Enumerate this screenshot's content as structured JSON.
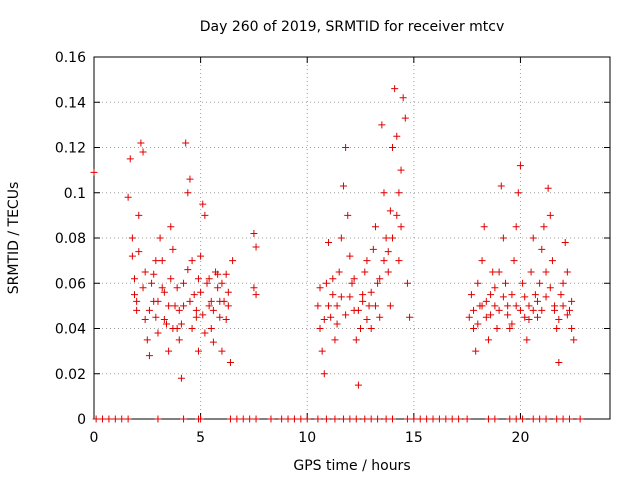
{
  "chart_data": {
    "type": "scatter",
    "title": "Day 260 of 2019, SRMTID for receiver mtcv",
    "xlabel": "GPS time / hours",
    "ylabel": "SRMTID / TECUs",
    "xlim": [
      0,
      24.2
    ],
    "ylim": [
      0,
      0.16
    ],
    "xticks": [
      0,
      5,
      10,
      15,
      20
    ],
    "xtick_labels": [
      "0",
      "5",
      "10",
      "15",
      "20"
    ],
    "yticks": [
      0,
      0.02,
      0.04,
      0.06,
      0.08,
      0.1,
      0.12,
      0.14,
      0.16
    ],
    "ytick_labels": [
      "0",
      "0.02",
      "0.04",
      "0.06",
      "0.08",
      "0.1",
      "0.12",
      "0.14",
      "0.16"
    ],
    "grid": true,
    "marker": "+",
    "series": [
      {
        "name": "SRMTID",
        "color": "#e00000",
        "points": [
          [
            0.0,
            0.109
          ],
          [
            1.6,
            0.098
          ],
          [
            1.7,
            0.115
          ],
          [
            1.8,
            0.072
          ],
          [
            1.9,
            0.055
          ],
          [
            2.0,
            0.048
          ],
          [
            2.1,
            0.09
          ],
          [
            2.2,
            0.122
          ],
          [
            2.3,
            0.118
          ],
          [
            2.4,
            0.065
          ],
          [
            2.5,
            0.035
          ],
          [
            2.6,
            0.028
          ],
          [
            2.7,
            0.06
          ],
          [
            2.8,
            0.052
          ],
          [
            2.9,
            0.045
          ],
          [
            3.0,
            0.038
          ],
          [
            3.1,
            0.08
          ],
          [
            3.2,
            0.07
          ],
          [
            3.3,
            0.056
          ],
          [
            3.4,
            0.042
          ],
          [
            3.5,
            0.03
          ],
          [
            3.6,
            0.085
          ],
          [
            3.7,
            0.075
          ],
          [
            3.8,
            0.05
          ],
          [
            3.9,
            0.04
          ],
          [
            4.0,
            0.035
          ],
          [
            4.1,
            0.018
          ],
          [
            4.2,
            0.06
          ],
          [
            4.3,
            0.122
          ],
          [
            4.4,
            0.1
          ],
          [
            4.5,
            0.106
          ],
          [
            4.6,
            0.07
          ],
          [
            4.7,
            0.055
          ],
          [
            4.8,
            0.045
          ],
          [
            4.9,
            0.03
          ],
          [
            5.0,
            0.072
          ],
          [
            5.1,
            0.095
          ],
          [
            5.2,
            0.09
          ],
          [
            5.3,
            0.06
          ],
          [
            5.4,
            0.05
          ],
          [
            5.5,
            0.04
          ],
          [
            5.6,
            0.034
          ],
          [
            5.7,
            0.065
          ],
          [
            5.8,
            0.058
          ],
          [
            5.9,
            0.045
          ],
          [
            6.0,
            0.03
          ],
          [
            6.1,
            0.052
          ],
          [
            6.2,
            0.064
          ],
          [
            6.3,
            0.056
          ],
          [
            6.4,
            0.025
          ],
          [
            6.5,
            0.07
          ],
          [
            7.5,
            0.082
          ],
          [
            7.5,
            0.058
          ],
          [
            7.6,
            0.076
          ],
          [
            7.6,
            0.055
          ],
          [
            1.8,
            0.08
          ],
          [
            1.9,
            0.062
          ],
          [
            2.0,
            0.052
          ],
          [
            2.1,
            0.074
          ],
          [
            2.3,
            0.058
          ],
          [
            2.4,
            0.044
          ],
          [
            2.6,
            0.048
          ],
          [
            2.8,
            0.064
          ],
          [
            2.9,
            0.07
          ],
          [
            3.0,
            0.052
          ],
          [
            3.2,
            0.058
          ],
          [
            3.3,
            0.044
          ],
          [
            3.5,
            0.05
          ],
          [
            3.6,
            0.062
          ],
          [
            3.7,
            0.04
          ],
          [
            3.9,
            0.058
          ],
          [
            4.0,
            0.048
          ],
          [
            4.1,
            0.042
          ],
          [
            4.2,
            0.05
          ],
          [
            4.4,
            0.066
          ],
          [
            4.5,
            0.052
          ],
          [
            4.6,
            0.04
          ],
          [
            4.8,
            0.048
          ],
          [
            4.9,
            0.062
          ],
          [
            5.0,
            0.056
          ],
          [
            5.1,
            0.046
          ],
          [
            5.2,
            0.038
          ],
          [
            5.4,
            0.062
          ],
          [
            5.5,
            0.052
          ],
          [
            5.6,
            0.048
          ],
          [
            5.8,
            0.064
          ],
          [
            5.9,
            0.052
          ],
          [
            6.0,
            0.06
          ],
          [
            6.2,
            0.044
          ],
          [
            6.3,
            0.05
          ],
          [
            10.5,
            0.05
          ],
          [
            10.6,
            0.04
          ],
          [
            10.7,
            0.03
          ],
          [
            10.8,
            0.02
          ],
          [
            10.9,
            0.06
          ],
          [
            11.0,
            0.078
          ],
          [
            11.1,
            0.045
          ],
          [
            11.2,
            0.055
          ],
          [
            11.3,
            0.035
          ],
          [
            11.4,
            0.05
          ],
          [
            11.5,
            0.065
          ],
          [
            11.6,
            0.08
          ],
          [
            11.7,
            0.103
          ],
          [
            11.8,
            0.12
          ],
          [
            11.9,
            0.09
          ],
          [
            12.0,
            0.072
          ],
          [
            12.1,
            0.06
          ],
          [
            12.2,
            0.048
          ],
          [
            12.3,
            0.035
          ],
          [
            12.4,
            0.015
          ],
          [
            12.5,
            0.04
          ],
          [
            12.6,
            0.055
          ],
          [
            12.7,
            0.065
          ],
          [
            12.8,
            0.07
          ],
          [
            12.9,
            0.05
          ],
          [
            13.0,
            0.04
          ],
          [
            13.1,
            0.075
          ],
          [
            13.2,
            0.085
          ],
          [
            13.3,
            0.06
          ],
          [
            13.4,
            0.045
          ],
          [
            13.5,
            0.13
          ],
          [
            13.6,
            0.1
          ],
          [
            13.7,
            0.08
          ],
          [
            13.8,
            0.065
          ],
          [
            13.9,
            0.05
          ],
          [
            14.0,
            0.12
          ],
          [
            14.1,
            0.146
          ],
          [
            14.2,
            0.125
          ],
          [
            14.3,
            0.1
          ],
          [
            14.4,
            0.085
          ],
          [
            14.5,
            0.142
          ],
          [
            14.6,
            0.133
          ],
          [
            14.7,
            0.06
          ],
          [
            14.8,
            0.045
          ],
          [
            10.6,
            0.058
          ],
          [
            10.8,
            0.044
          ],
          [
            11.0,
            0.05
          ],
          [
            11.2,
            0.062
          ],
          [
            11.4,
            0.042
          ],
          [
            11.6,
            0.054
          ],
          [
            11.8,
            0.046
          ],
          [
            12.0,
            0.054
          ],
          [
            12.2,
            0.062
          ],
          [
            12.4,
            0.048
          ],
          [
            12.6,
            0.052
          ],
          [
            12.8,
            0.044
          ],
          [
            13.0,
            0.056
          ],
          [
            13.2,
            0.05
          ],
          [
            13.4,
            0.062
          ],
          [
            13.6,
            0.07
          ],
          [
            13.8,
            0.074
          ],
          [
            14.0,
            0.08
          ],
          [
            14.2,
            0.09
          ],
          [
            14.4,
            0.11
          ],
          [
            14.3,
            0.07
          ],
          [
            13.9,
            0.092
          ],
          [
            17.6,
            0.045
          ],
          [
            17.7,
            0.055
          ],
          [
            17.8,
            0.04
          ],
          [
            17.9,
            0.03
          ],
          [
            18.0,
            0.06
          ],
          [
            18.1,
            0.05
          ],
          [
            18.2,
            0.07
          ],
          [
            18.3,
            0.085
          ],
          [
            18.4,
            0.045
          ],
          [
            18.5,
            0.035
          ],
          [
            18.6,
            0.055
          ],
          [
            18.7,
            0.065
          ],
          [
            18.8,
            0.05
          ],
          [
            18.9,
            0.04
          ],
          [
            19.0,
            0.065
          ],
          [
            19.1,
            0.103
          ],
          [
            19.2,
            0.08
          ],
          [
            19.3,
            0.06
          ],
          [
            19.4,
            0.05
          ],
          [
            19.5,
            0.04
          ],
          [
            19.6,
            0.055
          ],
          [
            19.7,
            0.07
          ],
          [
            19.8,
            0.085
          ],
          [
            19.9,
            0.1
          ],
          [
            20.0,
            0.112
          ],
          [
            20.1,
            0.06
          ],
          [
            20.2,
            0.045
          ],
          [
            20.3,
            0.035
          ],
          [
            20.4,
            0.05
          ],
          [
            20.5,
            0.065
          ],
          [
            20.6,
            0.08
          ],
          [
            20.7,
            0.055
          ],
          [
            20.8,
            0.045
          ],
          [
            20.9,
            0.06
          ],
          [
            21.0,
            0.075
          ],
          [
            21.1,
            0.085
          ],
          [
            21.2,
            0.065
          ],
          [
            21.3,
            0.102
          ],
          [
            21.4,
            0.09
          ],
          [
            21.5,
            0.07
          ],
          [
            21.6,
            0.05
          ],
          [
            21.7,
            0.04
          ],
          [
            21.8,
            0.025
          ],
          [
            21.9,
            0.055
          ],
          [
            22.0,
            0.06
          ],
          [
            22.1,
            0.078
          ],
          [
            22.2,
            0.065
          ],
          [
            22.3,
            0.048
          ],
          [
            22.4,
            0.04
          ],
          [
            22.5,
            0.035
          ],
          [
            17.8,
            0.048
          ],
          [
            18.0,
            0.042
          ],
          [
            18.2,
            0.05
          ],
          [
            18.4,
            0.052
          ],
          [
            18.6,
            0.046
          ],
          [
            18.8,
            0.058
          ],
          [
            19.0,
            0.048
          ],
          [
            19.2,
            0.054
          ],
          [
            19.4,
            0.046
          ],
          [
            19.6,
            0.042
          ],
          [
            19.8,
            0.05
          ],
          [
            20.0,
            0.048
          ],
          [
            20.2,
            0.054
          ],
          [
            20.4,
            0.044
          ],
          [
            20.6,
            0.048
          ],
          [
            20.8,
            0.052
          ],
          [
            21.0,
            0.048
          ],
          [
            21.2,
            0.054
          ],
          [
            21.4,
            0.058
          ],
          [
            21.6,
            0.048
          ],
          [
            21.8,
            0.044
          ],
          [
            22.0,
            0.05
          ],
          [
            22.2,
            0.046
          ],
          [
            22.4,
            0.052
          ]
        ]
      },
      {
        "name": "baseline",
        "color": "#e00000",
        "points": [
          [
            0.1,
            0
          ],
          [
            0.4,
            0
          ],
          [
            0.7,
            0
          ],
          [
            1.0,
            0
          ],
          [
            1.3,
            0
          ],
          [
            1.6,
            0
          ],
          [
            3.0,
            0
          ],
          [
            4.2,
            0
          ],
          [
            4.9,
            0
          ],
          [
            5.0,
            0
          ],
          [
            6.4,
            0
          ],
          [
            6.7,
            0
          ],
          [
            7.0,
            0
          ],
          [
            7.3,
            0
          ],
          [
            7.6,
            0
          ],
          [
            8.3,
            0
          ],
          [
            8.8,
            0
          ],
          [
            9.1,
            0
          ],
          [
            9.4,
            0
          ],
          [
            9.7,
            0
          ],
          [
            10.0,
            0
          ],
          [
            10.5,
            0
          ],
          [
            10.9,
            0
          ],
          [
            11.3,
            0
          ],
          [
            11.7,
            0
          ],
          [
            12.0,
            0
          ],
          [
            12.3,
            0
          ],
          [
            12.7,
            0
          ],
          [
            13.0,
            0
          ],
          [
            13.3,
            0
          ],
          [
            13.7,
            0
          ],
          [
            14.0,
            0
          ],
          [
            14.7,
            0
          ],
          [
            15.0,
            0
          ],
          [
            15.3,
            0
          ],
          [
            15.6,
            0
          ],
          [
            15.9,
            0
          ],
          [
            16.2,
            0
          ],
          [
            16.5,
            0
          ],
          [
            16.8,
            0
          ],
          [
            17.1,
            0
          ],
          [
            17.5,
            0
          ],
          [
            18.5,
            0
          ],
          [
            18.8,
            0
          ],
          [
            19.5,
            0
          ],
          [
            19.8,
            0
          ],
          [
            20.1,
            0
          ],
          [
            20.6,
            0
          ],
          [
            20.9,
            0
          ],
          [
            21.2,
            0
          ],
          [
            21.7,
            0
          ],
          [
            22.0,
            0
          ],
          [
            22.3,
            0
          ],
          [
            22.8,
            0
          ]
        ]
      }
    ]
  }
}
